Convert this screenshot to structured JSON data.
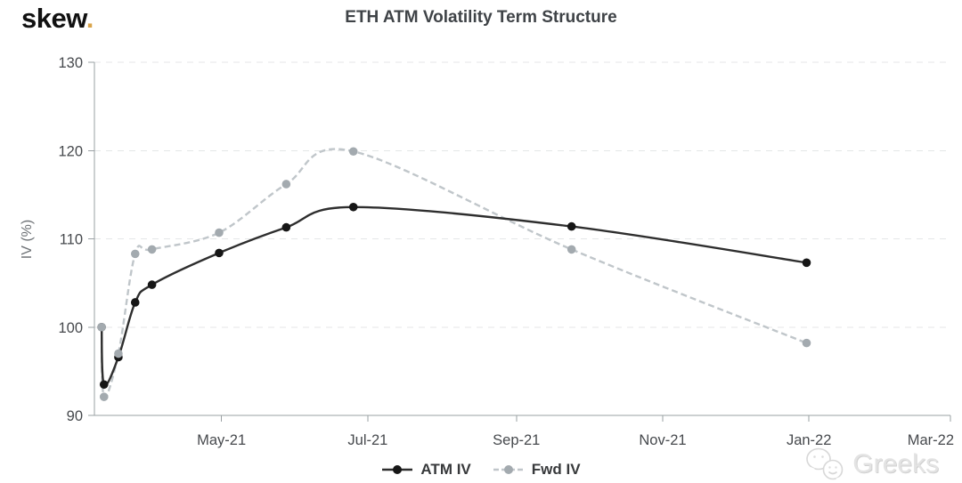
{
  "header": {
    "logo_text": "skew",
    "logo_dot": "."
  },
  "watermark": {
    "text": "Greeks",
    "icon": "wechat-chat-bubbles"
  },
  "colors": {
    "background": "#ffffff",
    "logo_text": "#111111",
    "logo_dot": "#d9a44a",
    "title_text": "#3f4347",
    "axis": "#9aa0a3",
    "grid": "#e4e6e7",
    "tick_text": "#46494d",
    "y_axis_title_text": "#6e7276",
    "legend_text": "#37393b",
    "watermark_text": "#e2e2e2"
  },
  "chart_data": {
    "type": "line",
    "title": "ETH ATM Volatility Term Structure",
    "xlabel": "",
    "ylabel": "IV (%)",
    "ylim": [
      90,
      130
    ],
    "yticks": [
      90,
      100,
      110,
      120,
      130
    ],
    "grid": "horizontal-dashed",
    "legend_position": "bottom-center",
    "x_axis": {
      "start_date": "2021-03-09",
      "end_date": "2022-03-01",
      "domain_days": [
        0,
        357
      ],
      "ticks": [
        {
          "label": "May-21",
          "day": 53
        },
        {
          "label": "Jul-21",
          "day": 114
        },
        {
          "label": "Sep-21",
          "day": 176
        },
        {
          "label": "Nov-21",
          "day": 237
        },
        {
          "label": "Jan-22",
          "day": 298
        },
        {
          "label": "Mar-22",
          "day": 357
        }
      ]
    },
    "x_dates": [
      "2021-03-12",
      "2021-03-13",
      "2021-03-19",
      "2021-03-26",
      "2021-04-02",
      "2021-04-30",
      "2021-05-28",
      "2021-06-25",
      "2021-09-24",
      "2021-12-31"
    ],
    "x_days": [
      3,
      4,
      10,
      17,
      24,
      52,
      80,
      108,
      199,
      297
    ],
    "series": [
      {
        "name": "ATM IV",
        "style": "solid",
        "line_color": "#2e2e2e",
        "marker_color": "#161616",
        "values": [
          100.0,
          93.5,
          96.6,
          102.8,
          104.8,
          108.4,
          111.3,
          113.6,
          111.4,
          107.3
        ]
      },
      {
        "name": "Fwd IV",
        "style": "dashed",
        "line_color": "#c0c6ca",
        "marker_color": "#a3aaaf",
        "values": [
          100.0,
          92.1,
          97.0,
          108.3,
          108.8,
          110.7,
          116.2,
          119.9,
          108.8,
          98.2
        ]
      }
    ]
  }
}
